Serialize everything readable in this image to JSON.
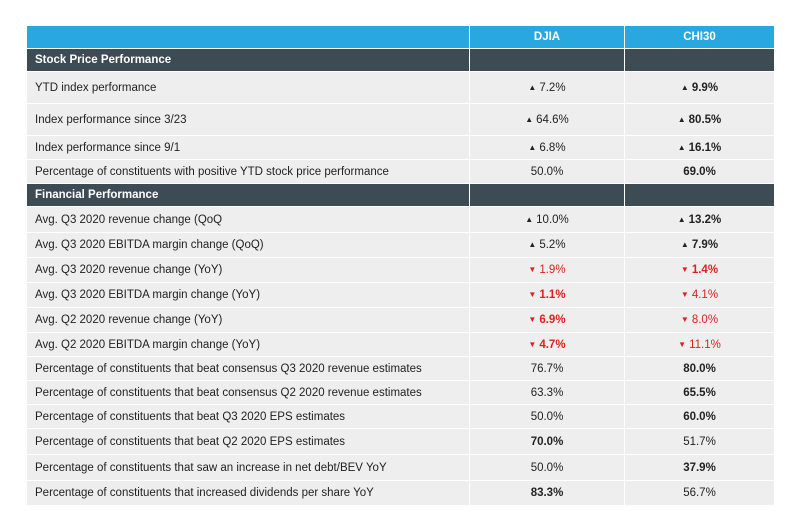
{
  "columns": {
    "djia": "DJIA",
    "chi30": "CHI30"
  },
  "sections": [
    {
      "title": "Stock Price Performance",
      "rows": [
        {
          "label": "YTD index performance",
          "djia": {
            "value": "7.2%",
            "dir": "up",
            "bold": false
          },
          "chi30": {
            "value": "9.9%",
            "dir": "up",
            "bold": true
          },
          "h": 32
        },
        {
          "label": "Index performance since 3/23",
          "djia": {
            "value": "64.6%",
            "dir": "up",
            "bold": false
          },
          "chi30": {
            "value": "80.5%",
            "dir": "up",
            "bold": true
          },
          "h": 32
        },
        {
          "label": "Index performance since 9/1",
          "djia": {
            "value": "6.8%",
            "dir": "up",
            "bold": false
          },
          "chi30": {
            "value": "16.1%",
            "dir": "up",
            "bold": true
          },
          "h": 24
        },
        {
          "label": "Percentage of constituents with positive YTD stock price performance",
          "djia": {
            "value": "50.0%",
            "dir": "",
            "bold": false
          },
          "chi30": {
            "value": "69.0%",
            "dir": "",
            "bold": true
          },
          "h": 24
        }
      ]
    },
    {
      "title": "Financial Performance",
      "rows": [
        {
          "label": "Avg. Q3 2020 revenue change (QoQ",
          "djia": {
            "value": "10.0%",
            "dir": "up",
            "bold": false
          },
          "chi30": {
            "value": "13.2%",
            "dir": "up",
            "bold": true
          },
          "h": 26
        },
        {
          "label": "Avg. Q3 2020 EBITDA margin change (QoQ)",
          "djia": {
            "value": "5.2%",
            "dir": "up",
            "bold": false
          },
          "chi30": {
            "value": "7.9%",
            "dir": "up",
            "bold": true
          },
          "h": 25
        },
        {
          "label": "Avg. Q3 2020 revenue change (YoY)",
          "djia": {
            "value": "1.9%",
            "dir": "down",
            "bold": false
          },
          "chi30": {
            "value": "1.4%",
            "dir": "down",
            "bold": true
          },
          "h": 25
        },
        {
          "label": "Avg. Q3 2020 EBITDA margin change (YoY)",
          "djia": {
            "value": "1.1%",
            "dir": "down",
            "bold": true
          },
          "chi30": {
            "value": "4.1%",
            "dir": "down",
            "bold": false
          },
          "h": 25
        },
        {
          "label": "Avg. Q2 2020 revenue change (YoY)",
          "djia": {
            "value": "6.9%",
            "dir": "down",
            "bold": true
          },
          "chi30": {
            "value": "8.0%",
            "dir": "down",
            "bold": false
          },
          "h": 25
        },
        {
          "label": "Avg. Q2 2020 EBITDA margin change (YoY)",
          "djia": {
            "value": "4.7%",
            "dir": "down",
            "bold": true
          },
          "chi30": {
            "value": "11.1%",
            "dir": "down",
            "bold": false
          },
          "h": 24
        },
        {
          "label": "Percentage of constituents that beat consensus Q3 2020 revenue estimates",
          "djia": {
            "value": "76.7%",
            "dir": "",
            "bold": false
          },
          "chi30": {
            "value": "80.0%",
            "dir": "",
            "bold": true
          },
          "h": 24
        },
        {
          "label": "Percentage of constituents that beat consensus Q2 2020 revenue estimates",
          "djia": {
            "value": "63.3%",
            "dir": "",
            "bold": false
          },
          "chi30": {
            "value": "65.5%",
            "dir": "",
            "bold": true
          },
          "h": 24
        },
        {
          "label": "Percentage of constituents that beat Q3 2020 EPS estimates",
          "djia": {
            "value": "50.0%",
            "dir": "",
            "bold": false
          },
          "chi30": {
            "value": "60.0%",
            "dir": "",
            "bold": true
          },
          "h": 24
        },
        {
          "label": "Percentage of constituents that beat Q2 2020 EPS estimates",
          "djia": {
            "value": "70.0%",
            "dir": "",
            "bold": true
          },
          "chi30": {
            "value": "51.7%",
            "dir": "",
            "bold": false
          },
          "h": 26
        },
        {
          "label": "Percentage of constituents that saw an increase in net debt/BEV YoY",
          "djia": {
            "value": "50.0%",
            "dir": "",
            "bold": false
          },
          "chi30": {
            "value": "37.9%",
            "dir": "",
            "bold": true
          },
          "h": 26
        },
        {
          "label": "Percentage of constituents that increased dividends per share YoY",
          "djia": {
            "value": "83.3%",
            "dir": "",
            "bold": true
          },
          "chi30": {
            "value": "56.7%",
            "dir": "",
            "bold": false
          },
          "h": 25
        }
      ]
    }
  ]
}
